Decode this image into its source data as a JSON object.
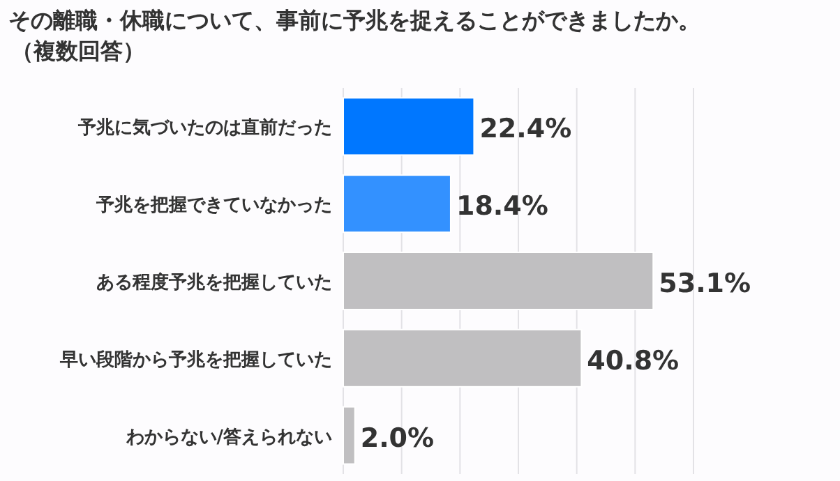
{
  "chart_data": {
    "type": "bar",
    "orientation": "horizontal",
    "title": "その離職・休職について、事前に予兆を捉えることができましたか。",
    "subtitle": "（複数回答）",
    "categories": [
      "予兆に気づいたのは直前だった",
      "予兆を把握できていなかった",
      "ある程度予兆を把握していた",
      "早い段階から予兆を把握していた",
      "わからない/答えられない"
    ],
    "values": [
      22.4,
      18.4,
      53.1,
      40.8,
      2.0
    ],
    "value_labels": [
      "22.4%",
      "18.4%",
      "53.1%",
      "40.8%",
      "2.0%"
    ],
    "colors": [
      "#0077ff",
      "#3391ff",
      "#c0bfc1",
      "#c0bfc1",
      "#c0bfc1"
    ],
    "xlim": [
      0,
      60
    ],
    "xticks": [
      {
        "value": 0,
        "label": null
      },
      {
        "value": 10,
        "label": null
      },
      {
        "value": 20,
        "label": null
      },
      {
        "value": 30,
        "label": null
      },
      {
        "value": 40,
        "label": null
      },
      {
        "value": 50,
        "label": null
      },
      {
        "value": 60,
        "label": null
      }
    ],
    "grid": "x"
  }
}
